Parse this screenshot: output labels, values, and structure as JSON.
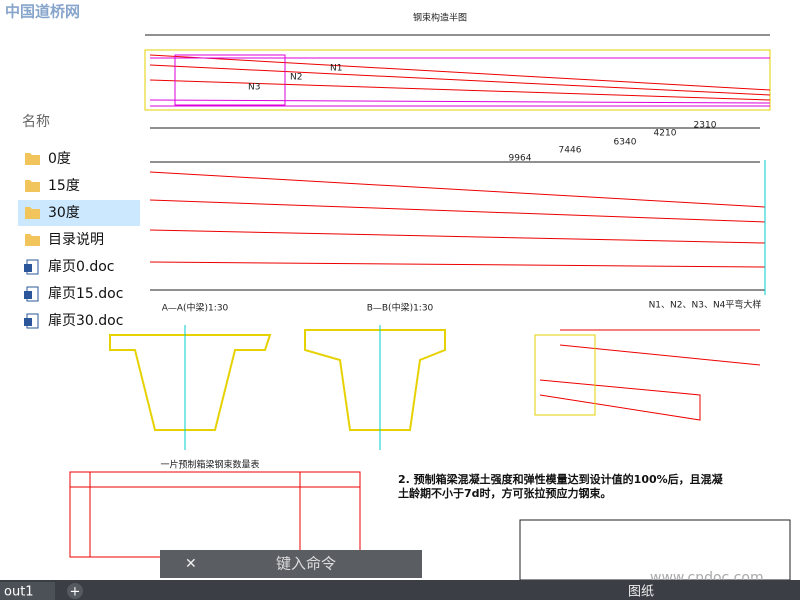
{
  "watermark": "中国道桥网",
  "watermark_site": "www.cndoc.com",
  "explorer": {
    "header": "名称",
    "selected_index": 2,
    "items": [
      {
        "name": "0度",
        "icon": "folder"
      },
      {
        "name": "15度",
        "icon": "folder"
      },
      {
        "name": "30度",
        "icon": "folder"
      },
      {
        "name": "目录说明",
        "icon": "folder"
      },
      {
        "name": "扉页0.doc",
        "icon": "doc"
      },
      {
        "name": "扉页15.doc",
        "icon": "doc"
      },
      {
        "name": "扉页30.doc",
        "icon": "doc"
      }
    ]
  },
  "drawing": {
    "plan_title": "钢束构造半图",
    "tendons": [
      "N1",
      "N2",
      "N3"
    ],
    "dimensions": [
      "2310",
      "4210",
      "6340",
      "7446",
      "9964"
    ],
    "section_a": "A—A(中梁)1:30",
    "section_b": "B—B(中梁)1:30",
    "detail_title": "N1、N2、N3、N4平弯大样",
    "table_title": "一片预制箱梁钢束数量表",
    "note_line1": "2. 预制箱梁混凝土强度和弹性模量达到设计值的100%后，且混凝",
    "note_line2": "土龄期不小于7d时，方可张拉预应力钢束。"
  },
  "command_prompt": "键入命令",
  "layout_tab": "out1",
  "add_tab": "+",
  "status_right": "图纸"
}
